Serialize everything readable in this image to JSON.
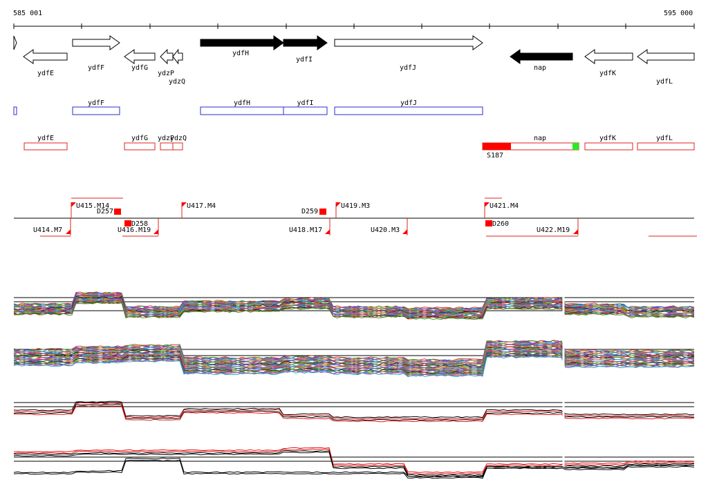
{
  "ruler": {
    "start_label": "585 001",
    "end_label": "595 000"
  },
  "colors": {
    "gene_outline": "#000000",
    "gene_filled": "#000000",
    "transcript": "#2a2ad8",
    "annotation": "#e02020",
    "annotation_fill": "#ff0000",
    "annotation_green": "#22ee22",
    "axis": "#000000",
    "profile_red": "#e01818"
  },
  "genes": [
    {
      "name": "ydfE",
      "strand": "-",
      "filled": false
    },
    {
      "name": "ydfF",
      "strand": "+",
      "filled": false
    },
    {
      "name": "ydfG",
      "strand": "-",
      "filled": false
    },
    {
      "name": "ydzP",
      "strand": "-",
      "filled": false
    },
    {
      "name": "ydzQ",
      "strand": "-",
      "filled": false
    },
    {
      "name": "ydfH",
      "strand": "+",
      "filled": true
    },
    {
      "name": "ydfI",
      "strand": "+",
      "filled": true
    },
    {
      "name": "ydfJ",
      "strand": "+",
      "filled": false
    },
    {
      "name": "nap",
      "strand": "-",
      "filled": true
    },
    {
      "name": "ydfK",
      "strand": "-",
      "filled": false
    },
    {
      "name": "ydfL",
      "strand": "-",
      "filled": false
    }
  ],
  "transcripts": [
    {
      "name": ""
    },
    {
      "name": "ydfF"
    },
    {
      "name": "ydfH"
    },
    {
      "name": "ydfI"
    },
    {
      "name": "ydfJ"
    }
  ],
  "annotations": [
    {
      "name": "ydfE"
    },
    {
      "name": "ydfG"
    },
    {
      "name": "ydzP"
    },
    {
      "name": "ydzQ"
    },
    {
      "name": "nap"
    },
    {
      "name": "ydfK"
    },
    {
      "name": "ydfL"
    }
  ],
  "site_label": "S187",
  "segments_upper": [
    {
      "name": "U415.M14"
    },
    {
      "name": "U417.M4"
    },
    {
      "name": "U419.M3"
    },
    {
      "name": "U421.M4"
    }
  ],
  "segments_lower": [
    {
      "name": "U414.M7"
    },
    {
      "name": "U416.M19"
    },
    {
      "name": "U418.M17"
    },
    {
      "name": "U420.M3"
    },
    {
      "name": "U422.M19"
    }
  ],
  "down_markers": [
    {
      "name": "D257"
    },
    {
      "name": "D258"
    },
    {
      "name": "D259"
    },
    {
      "name": "D260"
    }
  ],
  "tracks": [
    {
      "id": "multi-profile-plus"
    },
    {
      "id": "multi-profile-minus"
    },
    {
      "id": "summary-profile-plus"
    },
    {
      "id": "summary-profile-minus"
    }
  ]
}
